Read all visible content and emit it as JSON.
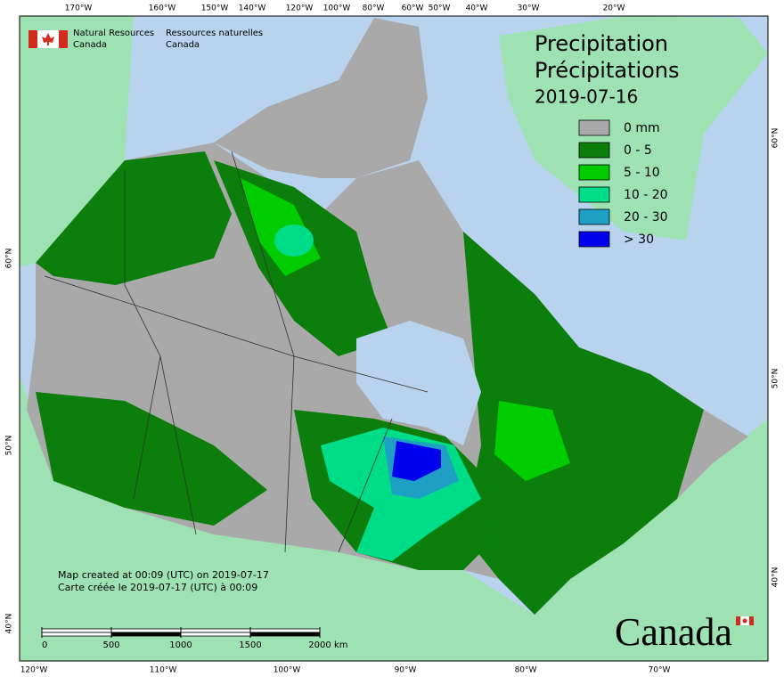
{
  "header": {
    "department_en": [
      "Natural Resources",
      "Canada"
    ],
    "department_fr": [
      "Ressources naturelles",
      "Canada"
    ]
  },
  "title": {
    "en": "Precipitation",
    "fr": "Précipitations",
    "date": "2019-07-16"
  },
  "legend": [
    {
      "label": "0 mm",
      "color": "#a9a9a9"
    },
    {
      "label": "0 - 5",
      "color": "#0b7e0b"
    },
    {
      "label": "5 - 10",
      "color": "#00cc00"
    },
    {
      "label": "10 - 20",
      "color": "#00dd88"
    },
    {
      "label": "20 - 30",
      "color": "#1e9fc4"
    },
    {
      "label": "> 30",
      "color": "#0000ee"
    }
  ],
  "graticule": {
    "top": [
      "170°W",
      "160°W",
      "150°W",
      "140°W",
      "120°W",
      "100°W",
      "80°W",
      "60°W",
      "50°W",
      "40°W",
      "30°W",
      "20°W"
    ],
    "bottom": [
      "120°W",
      "110°W",
      "100°W",
      "90°W",
      "80°W",
      "70°W"
    ],
    "left": [
      "60°N",
      "50°N",
      "40°N"
    ],
    "right": [
      "60°N",
      "50°N",
      "40°N"
    ]
  },
  "notes": [
    "Map created at 00:09 (UTC) on 2019-07-17",
    "Carte créée le 2019-07-17 (UTC) à 00:09"
  ],
  "scale_bar": {
    "ticks": [
      0,
      500,
      1000,
      1500,
      2000
    ],
    "unit": "km"
  },
  "wordmark": "Canada"
}
